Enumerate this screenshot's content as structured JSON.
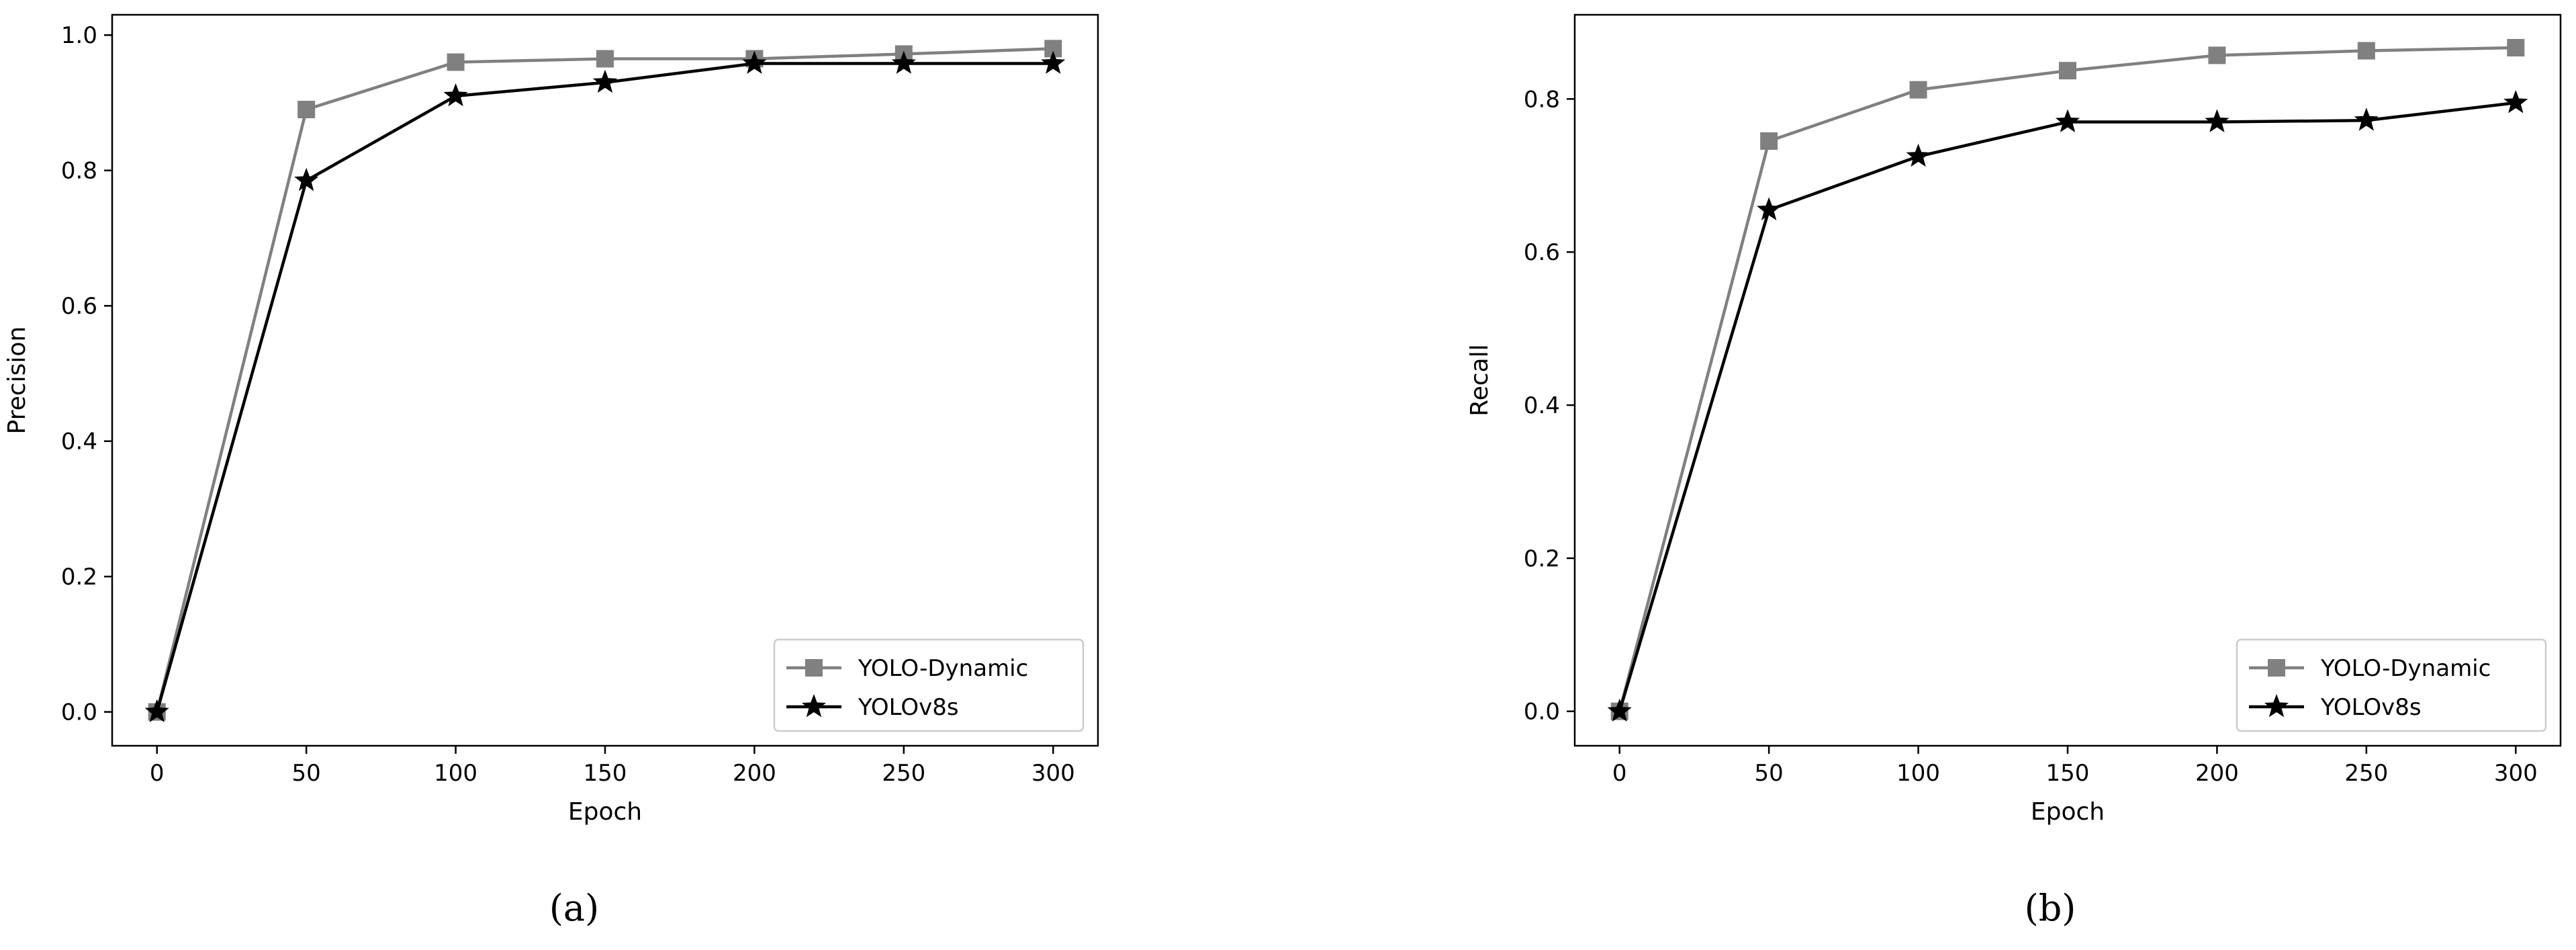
{
  "chart_data": [
    {
      "type": "line",
      "title": "",
      "xlabel": "Epoch",
      "ylabel": "Precision",
      "x": [
        0,
        50,
        100,
        150,
        200,
        250,
        300
      ],
      "xlim": [
        -15,
        315
      ],
      "ylim": [
        -0.05,
        1.03
      ],
      "xticks": [
        "0",
        "50",
        "100",
        "150",
        "200",
        "250",
        "300"
      ],
      "yticks": [
        "0.0",
        "0.2",
        "0.4",
        "0.6",
        "0.8",
        "1.0"
      ],
      "grid": false,
      "legend_position": "lower-right",
      "panel_label": "(a)",
      "series": [
        {
          "name": "YOLO-Dynamic",
          "marker": "square",
          "color": "#808080",
          "values": [
            0.0,
            0.89,
            0.96,
            0.965,
            0.965,
            0.972,
            0.98
          ]
        },
        {
          "name": "YOLOv8s",
          "marker": "star",
          "color": "#000000",
          "values": [
            0.0,
            0.785,
            0.91,
            0.93,
            0.958,
            0.958,
            0.958
          ]
        }
      ]
    },
    {
      "type": "line",
      "title": "",
      "xlabel": "Epoch",
      "ylabel": "Recall",
      "x": [
        0,
        50,
        100,
        150,
        200,
        250,
        300
      ],
      "xlim": [
        -15,
        315
      ],
      "ylim": [
        -0.045,
        0.91
      ],
      "xticks": [
        "0",
        "50",
        "100",
        "150",
        "200",
        "250",
        "300"
      ],
      "yticks": [
        "0.0",
        "0.2",
        "0.4",
        "0.6",
        "0.8"
      ],
      "grid": false,
      "legend_position": "lower-right",
      "panel_label": "(b)",
      "series": [
        {
          "name": "YOLO-Dynamic",
          "marker": "square",
          "color": "#808080",
          "values": [
            0.0,
            0.745,
            0.812,
            0.837,
            0.857,
            0.863,
            0.867
          ]
        },
        {
          "name": "YOLOv8s",
          "marker": "star",
          "color": "#000000",
          "values": [
            0.0,
            0.655,
            0.725,
            0.77,
            0.77,
            0.772,
            0.795
          ]
        }
      ]
    }
  ]
}
